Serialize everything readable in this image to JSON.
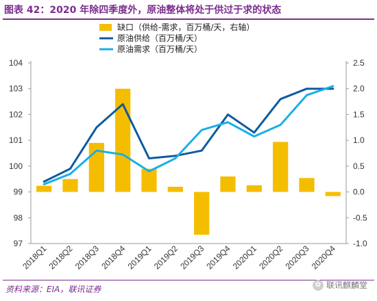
{
  "header": {
    "title": "图表 42：2020 年除四季度外，原油整体将处于供过于求的状态"
  },
  "footer": {
    "source": "资料来源：EIA，联讯证券",
    "watermark": "联讯麒麟堂"
  },
  "colors": {
    "title": "#7b2d8e",
    "bar": "#f5bd00",
    "supply": "#0e5a9e",
    "demand": "#1aaee8"
  },
  "chart_data": {
    "type": "bar+line",
    "categories": [
      "2018Q1",
      "2018Q2",
      "2018Q3",
      "2018Q4",
      "2019Q1",
      "2019Q2",
      "2019Q3",
      "2019Q4",
      "2020Q1",
      "2020Q2",
      "2020Q3",
      "2020Q4"
    ],
    "left_axis": {
      "ylim": [
        97,
        104
      ],
      "ticks": [
        97,
        98,
        99,
        100,
        101,
        102,
        103,
        104
      ]
    },
    "right_axis": {
      "ylim": [
        -1.0,
        2.5
      ],
      "ticks": [
        "-1.0",
        "-0.5",
        "0.0",
        "0.5",
        "1.0",
        "1.5",
        "2.0",
        "2.5"
      ]
    },
    "series": [
      {
        "name": "缺口（供给-需求，百万桶/天，右轴）",
        "type": "bar",
        "axis": "right",
        "color": "#f5bd00",
        "values": [
          0.12,
          0.25,
          0.95,
          2.0,
          0.45,
          0.1,
          -0.83,
          0.3,
          0.13,
          0.97,
          0.27,
          -0.08
        ]
      },
      {
        "name": "原油供给（百万桶/天）",
        "type": "line",
        "axis": "left",
        "color": "#0e5a9e",
        "values": [
          99.4,
          99.9,
          101.5,
          102.4,
          100.3,
          100.4,
          100.6,
          102.0,
          101.3,
          102.6,
          103.0,
          103.0
        ]
      },
      {
        "name": "原油需求（百万桶/天）",
        "type": "line",
        "axis": "left",
        "color": "#1aaee8",
        "values": [
          99.3,
          99.7,
          100.6,
          100.45,
          99.8,
          100.3,
          101.4,
          101.7,
          101.15,
          101.6,
          102.75,
          103.1
        ]
      }
    ],
    "legend_position": "top-left",
    "grid": false
  }
}
